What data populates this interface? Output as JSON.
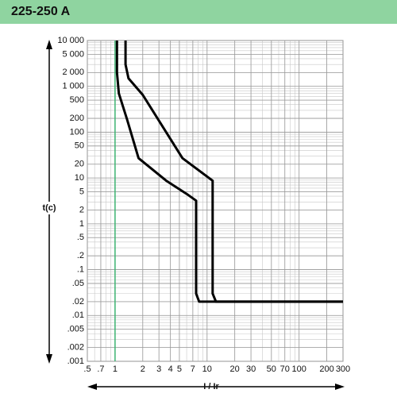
{
  "chart_data": {
    "type": "line",
    "title": "225-250 A",
    "xlabel": "I / Ir",
    "ylabel": "t(c)",
    "log_x": true,
    "log_y": true,
    "grid": true,
    "xlim": [
      0.5,
      300
    ],
    "ylim": [
      0.001,
      10000
    ],
    "xticks": [
      {
        "value": 0.5,
        "label": ".5"
      },
      {
        "value": 0.7,
        "label": ".7"
      },
      1,
      2,
      3,
      4,
      5,
      7,
      10,
      20,
      30,
      50,
      70,
      100,
      200,
      300
    ],
    "yticks": [
      {
        "value": 10000,
        "label": "10 000"
      },
      {
        "value": 5000,
        "label": "5 000"
      },
      {
        "value": 2000,
        "label": "2 000"
      },
      {
        "value": 1000,
        "label": "1 000"
      },
      500,
      200,
      100,
      50,
      20,
      10,
      5,
      2,
      1,
      {
        "value": 0.5,
        "label": ".5"
      },
      {
        "value": 0.2,
        "label": ".2"
      },
      {
        "value": 0.1,
        "label": ".1"
      },
      {
        "value": 0.05,
        "label": ".05"
      },
      {
        "value": 0.02,
        "label": ".02"
      },
      {
        "value": 0.01,
        "label": ".01"
      },
      {
        "value": 0.005,
        "label": ".005"
      },
      {
        "value": 0.002,
        "label": ".002"
      },
      {
        "value": 0.001,
        "label": ".001"
      }
    ],
    "ref_x": 1,
    "ref_color": "#3cb371",
    "series": [
      {
        "color": "#000000",
        "x": [
          1.05,
          1.05,
          1.1,
          1.35,
          1.8,
          3.6,
          6,
          7.6,
          7.6,
          8.2,
          300
        ],
        "values": [
          10000,
          2000,
          700,
          190,
          27,
          8.7,
          4.5,
          3.2,
          0.03,
          0.02,
          0.02
        ]
      },
      {
        "color": "#000000",
        "x": [
          1.3,
          1.3,
          1.4,
          2,
          5.4,
          11.5,
          11.5,
          12.5,
          300
        ],
        "values": [
          10000,
          3000,
          1500,
          650,
          27,
          8.7,
          0.03,
          0.02,
          0.02
        ]
      }
    ]
  }
}
